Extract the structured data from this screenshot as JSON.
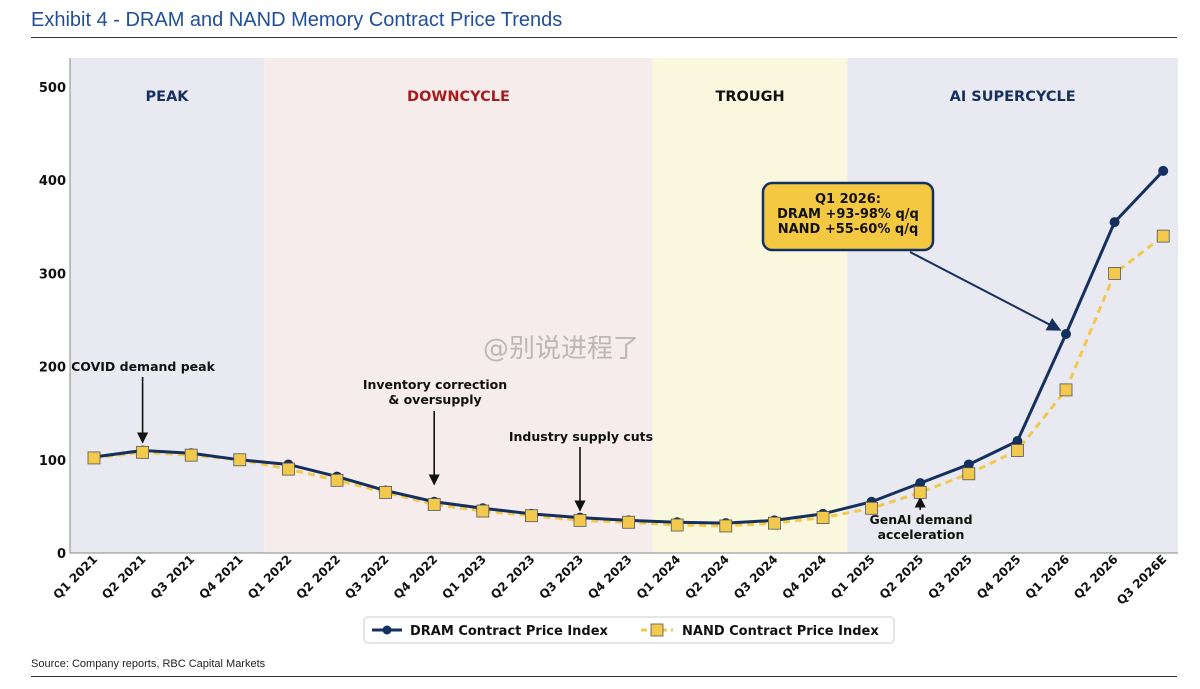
{
  "exhibit_title": "Exhibit 4 - DRAM and NAND Memory Contract Price Trends",
  "source_note": "Source: Company reports, RBC Capital Markets",
  "watermark": "@别说进程了",
  "chart_data": {
    "type": "line",
    "ylim": [
      0,
      500
    ],
    "yticks": [
      0,
      100,
      200,
      300,
      400,
      500
    ],
    "grid": false,
    "legend_position": "bottom",
    "categories": [
      "Q1 2021",
      "Q2 2021",
      "Q3 2021",
      "Q4 2021",
      "Q1 2022",
      "Q2 2022",
      "Q3 2022",
      "Q4 2022",
      "Q1 2023",
      "Q2 2023",
      "Q3 2023",
      "Q4 2023",
      "Q1 2024",
      "Q2 2024",
      "Q3 2024",
      "Q4 2024",
      "Q1 2025",
      "Q2 2025",
      "Q3 2025",
      "Q4 2025",
      "Q1 2026",
      "Q2 2026",
      "Q3 2026E"
    ],
    "series": [
      {
        "name": "DRAM Contract Price Index",
        "color": "#14305e",
        "style": "solid",
        "marker": "circle",
        "values": [
          103,
          110,
          107,
          100,
          95,
          82,
          67,
          55,
          48,
          42,
          38,
          35,
          33,
          32,
          35,
          42,
          55,
          75,
          95,
          120,
          235,
          355,
          410
        ]
      },
      {
        "name": "NAND Contract Price Index",
        "color": "#f2c94c",
        "style": "dashed",
        "marker": "square",
        "values": [
          102,
          108,
          105,
          100,
          90,
          78,
          65,
          52,
          45,
          40,
          35,
          33,
          30,
          29,
          32,
          38,
          48,
          65,
          85,
          110,
          175,
          300,
          340
        ]
      }
    ],
    "phases": [
      {
        "label": "PEAK",
        "start": 0,
        "end": 3.5,
        "fill": "#e9e9f1",
        "text_color": "#14305e"
      },
      {
        "label": "DOWNCYCLE",
        "start": 3.5,
        "end": 11.5,
        "fill": "#f7ecec",
        "text_color": "#a81c1c"
      },
      {
        "label": "TROUGH",
        "start": 11.5,
        "end": 15.5,
        "fill": "#f9f8df",
        "text_color": "#111111"
      },
      {
        "label": "AI SUPERCYCLE",
        "start": 15.5,
        "end": 22.5,
        "fill": "#e9e9f1",
        "text_color": "#14305e"
      }
    ],
    "annotations": [
      {
        "lines": [
          "COVID demand peak"
        ],
        "target": {
          "x": 1,
          "y": 110
        }
      },
      {
        "lines": [
          "Inventory correction",
          "& oversupply"
        ],
        "target": {
          "x": 7,
          "y": 65
        }
      },
      {
        "lines": [
          "Industry supply cuts"
        ],
        "target": {
          "x": 10,
          "y": 37
        }
      },
      {
        "lines": [
          "GenAI demand",
          "acceleration"
        ],
        "target": {
          "x": 17,
          "y": 67
        }
      }
    ],
    "callout": {
      "lines": [
        "Q1 2026:",
        "DRAM +93-98% q/q",
        "NAND +55-60% q/q"
      ],
      "fill": "#f5c842",
      "border": "#14305e",
      "target": {
        "x": 20,
        "y": 235
      }
    }
  }
}
